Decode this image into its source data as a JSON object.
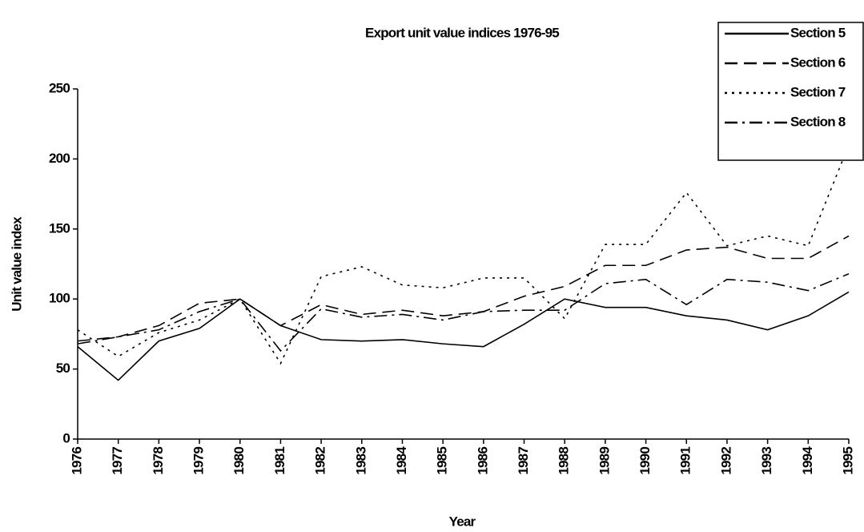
{
  "chart_data": {
    "type": "line",
    "title": "Export unit value indices 1976-95",
    "x_label": "Year",
    "y_label": "Unit value index",
    "categories": [
      "1976",
      "1977",
      "1978",
      "1979",
      "1980",
      "1981",
      "1982",
      "1983",
      "1984",
      "1985",
      "1986",
      "1987",
      "1988",
      "1989",
      "1990",
      "1991",
      "1992",
      "1993",
      "1994",
      "1995"
    ],
    "series": [
      {
        "name": "Section 5",
        "color": "#000000",
        "style": "solid",
        "values": [
          66,
          42,
          70,
          79,
          100,
          81,
          71,
          70,
          71,
          68,
          66,
          82,
          100,
          94,
          94,
          88,
          85,
          78,
          88,
          105
        ]
      },
      {
        "name": "Section 6",
        "color": "#000000",
        "style": "dashed",
        "values": [
          70,
          73,
          81,
          97,
          100,
          81,
          96,
          89,
          92,
          88,
          91,
          102,
          109,
          124,
          124,
          135,
          137,
          129,
          129,
          145
        ]
      },
      {
        "name": "Section 7",
        "color": "#000000",
        "style": "dotted",
        "values": [
          78,
          59,
          76,
          85,
          100,
          54,
          116,
          123,
          110,
          108,
          115,
          115,
          86,
          139,
          139,
          176,
          138,
          145,
          138,
          210
        ]
      },
      {
        "name": "Section 8",
        "color": "#000000",
        "style": "dashdot",
        "values": [
          68,
          73,
          78,
          91,
          100,
          63,
          93,
          87,
          89,
          85,
          91,
          92,
          92,
          111,
          114,
          96,
          114,
          112,
          106,
          118
        ]
      }
    ],
    "ylim": [
      0,
      250
    ],
    "yticks": [
      0,
      50,
      100,
      150,
      200,
      250
    ],
    "grid": false,
    "legend": "upper right"
  }
}
